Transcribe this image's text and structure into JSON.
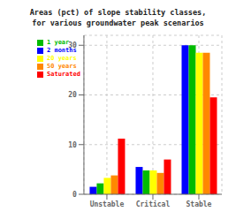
{
  "chart_data": {
    "type": "bar",
    "title": "Areas (pct) of slope stability classes,\nfor various groundwater peak scenarios",
    "categories": [
      "Unstable",
      "Critical",
      "Stable"
    ],
    "series": [
      {
        "name": "2 months",
        "color": "#0000FF",
        "values": [
          1.5,
          5.5,
          30.0
        ]
      },
      {
        "name": "1 year",
        "color": "#00BB00",
        "values": [
          2.2,
          4.8,
          30.0
        ]
      },
      {
        "name": "20 years",
        "color": "#FFFF00",
        "values": [
          3.3,
          4.8,
          28.5
        ]
      },
      {
        "name": "50 years",
        "color": "#FF8800",
        "values": [
          3.8,
          4.3,
          28.5
        ]
      },
      {
        "name": "Saturated",
        "color": "#FF0000",
        "values": [
          11.2,
          7.0,
          19.5
        ]
      }
    ],
    "ylim": [
      0,
      32
    ],
    "yticks": [
      0,
      10,
      20,
      30
    ],
    "grid": true,
    "legend": "upper left"
  }
}
